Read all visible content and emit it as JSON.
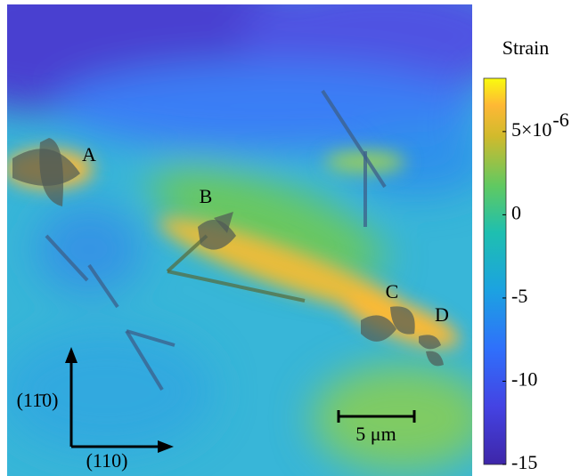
{
  "chart_data": {
    "type": "heatmap",
    "colorbar_label": "Strain",
    "clim": [
      -15,
      8.2
    ],
    "colorbar_ticks": [
      {
        "value": 5,
        "label": "5×10"
      },
      0,
      -5,
      -10,
      -15
    ],
    "colorbar_exponent": "-6",
    "annotations": [
      "A",
      "B",
      "C",
      "D"
    ],
    "axis_labels": [
      "(11̄0)",
      "(110)"
    ],
    "scale_bar": "5 μm"
  }
}
